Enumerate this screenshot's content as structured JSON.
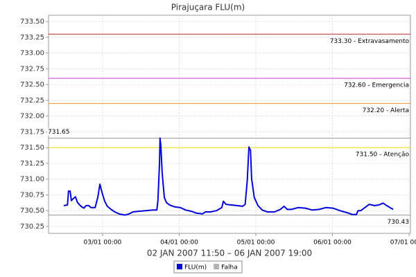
{
  "chart_data": {
    "type": "line",
    "title": "Pirajuçara FLU(m)",
    "x_label": "02 JAN 2007 11:50 – 06 JAN 2007 19:00",
    "x": [
      "02/01 11:50",
      "02/01 13:00",
      "02/01 13:20",
      "02/01 13:50",
      "02/01 14:15",
      "02/01 14:50",
      "02/01 15:30",
      "02/01 16:10",
      "02/01 17:15",
      "02/01 18:10",
      "02/01 18:50",
      "02/01 19:40",
      "02/01 20:20",
      "02/01 21:40",
      "02/01 22:30",
      "02/01 23:10",
      "02/01 23:50",
      "03/01 00:40",
      "03/01 01:30",
      "03/01 02:40",
      "03/01 03:50",
      "03/01 05:10",
      "03/01 07:00",
      "03/01 08:20",
      "03/01 09:30",
      "03/01 11:20",
      "03/01 13:30",
      "03/01 15:40",
      "03/01 17:00",
      "03/01 17:20",
      "03/01 17:50",
      "03/01 18:00",
      "03/01 18:15",
      "03/01 18:40",
      "03/01 19:20",
      "03/01 20:00",
      "03/01 21:00",
      "03/01 22:40",
      "04/01 00:20",
      "04/01 02:00",
      "04/01 03:50",
      "04/01 05:30",
      "04/01 07:20",
      "04/01 08:10",
      "04/01 09:50",
      "04/01 11:40",
      "04/01 13:20",
      "04/01 13:50",
      "04/01 14:40",
      "04/01 16:20",
      "04/01 18:10",
      "04/01 19:50",
      "04/01 20:40",
      "04/01 21:20",
      "04/01 21:50",
      "04/01 22:20",
      "04/01 22:40",
      "04/01 23:30",
      "05/01 00:40",
      "05/01 02:00",
      "05/01 03:40",
      "05/01 05:50",
      "05/01 07:40",
      "05/01 08:50",
      "05/01 09:50",
      "05/01 11:10",
      "05/01 13:20",
      "05/01 15:30",
      "05/01 17:40",
      "05/01 19:50",
      "05/01 22:00",
      "06/01 00:10",
      "06/01 02:20",
      "06/01 04:30",
      "06/01 06:10",
      "06/01 07:30",
      "06/01 08:00",
      "06/01 08:50",
      "06/01 10:10",
      "06/01 11:30",
      "06/01 13:10",
      "06/01 14:30",
      "06/01 15:50",
      "06/01 17:00",
      "06/01 18:00",
      "06/01 19:00"
    ],
    "series": [
      {
        "name": "FLU(m)",
        "color": "#0000dd",
        "values": [
          730.58,
          730.59,
          730.81,
          730.81,
          730.66,
          730.69,
          730.72,
          730.63,
          730.57,
          730.54,
          730.58,
          730.58,
          730.55,
          730.55,
          730.71,
          730.92,
          730.79,
          730.65,
          730.57,
          730.52,
          730.48,
          730.45,
          730.43,
          730.45,
          730.48,
          730.49,
          730.5,
          730.51,
          730.51,
          730.66,
          731.27,
          731.65,
          731.53,
          731.1,
          730.71,
          730.63,
          730.59,
          730.56,
          730.55,
          730.51,
          730.49,
          730.46,
          730.45,
          730.48,
          730.48,
          730.5,
          730.55,
          730.65,
          730.6,
          730.59,
          730.58,
          730.57,
          730.6,
          730.99,
          731.51,
          731.46,
          731.01,
          730.71,
          730.58,
          730.51,
          730.48,
          730.48,
          730.52,
          730.57,
          730.52,
          730.52,
          730.55,
          730.54,
          730.51,
          730.52,
          730.55,
          730.54,
          730.5,
          730.47,
          730.44,
          730.44,
          730.5,
          730.5,
          730.55,
          730.6,
          730.58,
          730.59,
          730.62,
          730.58,
          730.55,
          730.52
        ]
      }
    ],
    "extra_legend": [
      {
        "name": "Falha",
        "color": "#b4b4b4"
      }
    ],
    "thresholds": [
      {
        "value": 733.3,
        "label": "733.30 - Extravasamento",
        "color": "#c04040"
      },
      {
        "value": 732.6,
        "label": "732.60 - Emergencia",
        "color": "#d050d0"
      },
      {
        "value": 732.2,
        "label": "732.20 - Alerta",
        "color": "#f0a040"
      },
      {
        "value": 731.5,
        "label": "731.50 - Atenção",
        "color": "#f0e020"
      }
    ],
    "max_marker": {
      "value": 731.65,
      "label": "731.65"
    },
    "min_marker": {
      "value": 730.43,
      "label": "730.43"
    },
    "xlim": [
      "02/01 07:05",
      "07/01 00:25"
    ],
    "xticks": [
      "03/01 00:00",
      "04/01 00:00",
      "05/01 00:00",
      "06/01 00:00",
      "07/01 00:00"
    ],
    "ylim": [
      730.14,
      733.6
    ],
    "yticks": [
      730.25,
      {
        "value": 730.5,
        "label": "730.50"
      },
      730.75,
      {
        "value": 731,
        "label": "731.00"
      },
      731.25,
      {
        "value": 731.5,
        "label": "731.50"
      },
      731.75,
      {
        "value": 732,
        "label": "732.00"
      },
      732.25,
      {
        "value": 732.5,
        "label": "732.50"
      },
      732.75,
      {
        "value": 733,
        "label": "733.00"
      },
      733.25,
      {
        "value": 733.5,
        "label": "733.50"
      }
    ],
    "grid": true
  }
}
